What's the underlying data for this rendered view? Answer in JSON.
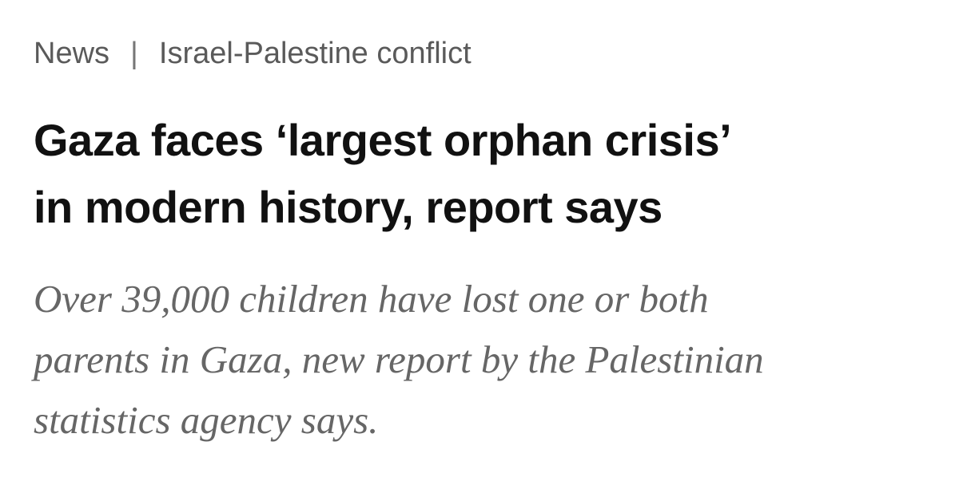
{
  "breadcrumb": {
    "section": "News",
    "separator": "|",
    "topic": "Israel-Palestine conflict"
  },
  "headline": {
    "lines": [
      "Gaza faces ‘largest orphan crisis’",
      "in modern history, report says"
    ]
  },
  "standfirst": {
    "lines": [
      "Over 39,000 children have lost one or both",
      "parents in Gaza, new report by the Palestinian",
      "statistics agency says."
    ]
  }
}
